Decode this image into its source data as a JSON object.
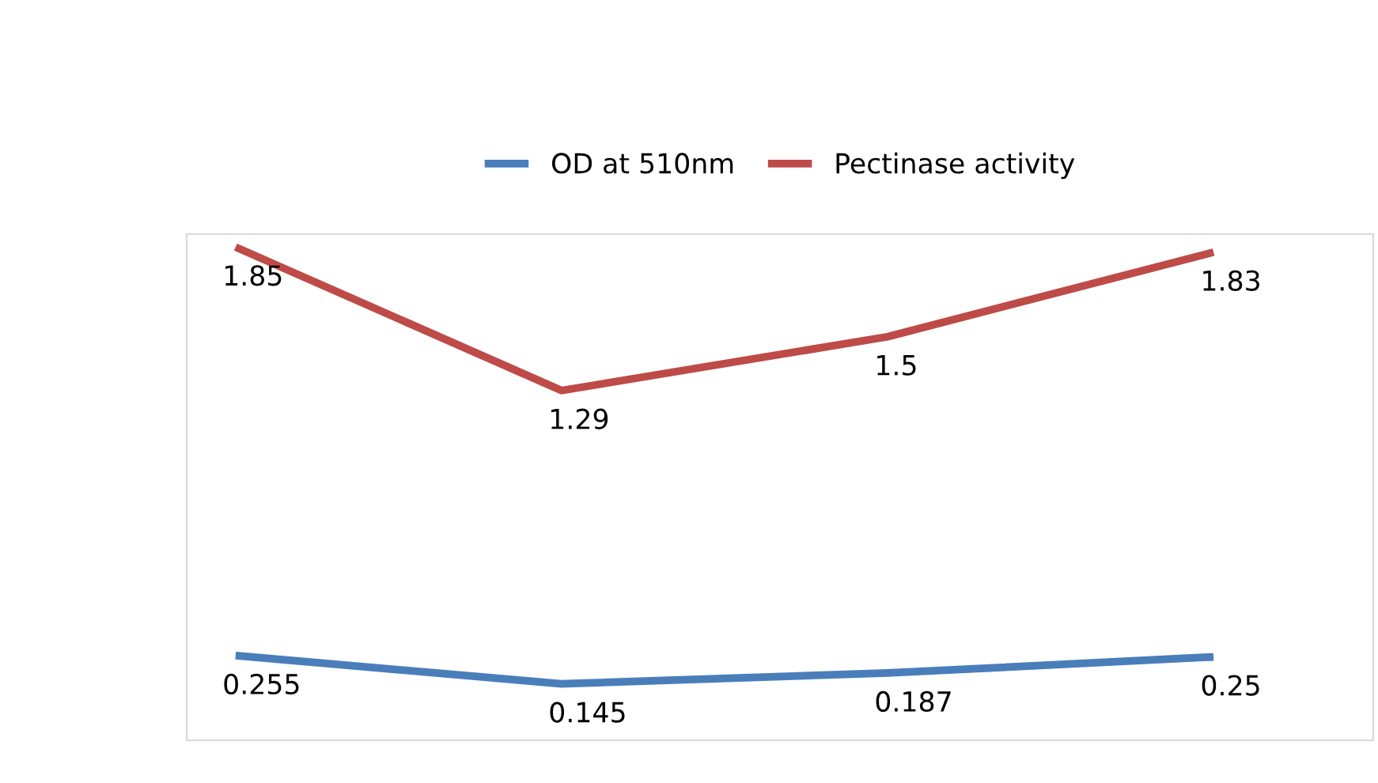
{
  "chart_data": {
    "type": "line",
    "categories": [
      null,
      null,
      null,
      null
    ],
    "series": [
      {
        "name": "OD at 510nm",
        "color": "#4a7ebb",
        "values": [
          0.255,
          0.145,
          0.187,
          0.25
        ]
      },
      {
        "name": "Pectinase activity",
        "color": "#be4b48",
        "values": [
          1.85,
          1.29,
          1.5,
          1.83
        ]
      }
    ],
    "data_labels": true,
    "legend": "top",
    "grid": false,
    "marker": "none",
    "line_style": "solid"
  }
}
